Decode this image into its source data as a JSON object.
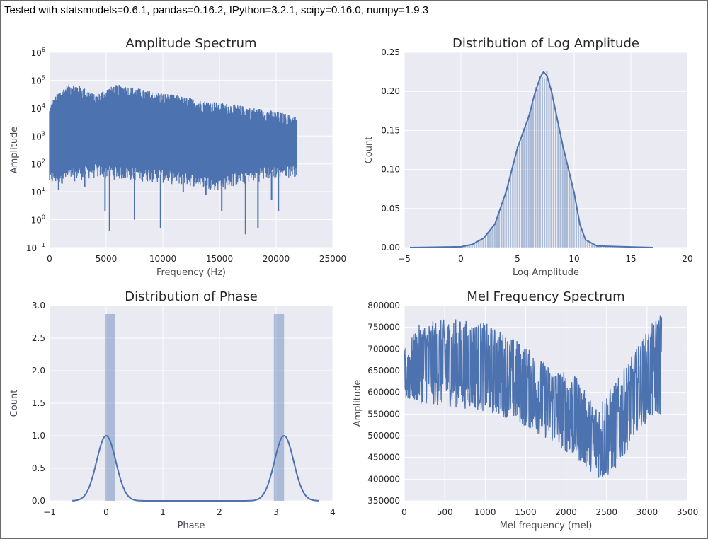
{
  "caption": "Tested with statsmodels=0.6.1, pandas=0.16.2, IPython=3.2.1, scipy=0.16.0, numpy=1.9.3",
  "colors": {
    "axes_bg": "#eaeaf2",
    "grid": "#ffffff",
    "series": "#4c72b0"
  },
  "chart_data": [
    {
      "id": "amplitude",
      "type": "line",
      "title": "Amplitude Spectrum",
      "xlabel": "Frequency (Hz)",
      "ylabel": "Amplitude",
      "xlim": [
        0,
        25000
      ],
      "ylim_log10": [
        -1,
        6
      ],
      "yscale": "log",
      "xticks": [
        "0",
        "5000",
        "10000",
        "15000",
        "20000",
        "25000"
      ],
      "yticks": [
        {
          "base": "10",
          "exp": "−1"
        },
        {
          "base": "10",
          "exp": "0"
        },
        {
          "base": "10",
          "exp": "1"
        },
        {
          "base": "10",
          "exp": "2"
        },
        {
          "base": "10",
          "exp": "3"
        },
        {
          "base": "10",
          "exp": "4"
        },
        {
          "base": "10",
          "exp": "5"
        },
        {
          "base": "10",
          "exp": "6"
        }
      ],
      "grid": true,
      "x_max_data": 21800,
      "upper_envelope": [
        [
          0,
          10000
        ],
        [
          2000,
          80000
        ],
        [
          4000,
          30000
        ],
        [
          6000,
          70000
        ],
        [
          9000,
          40000
        ],
        [
          13000,
          20000
        ],
        [
          17000,
          12000
        ],
        [
          21800,
          5000
        ]
      ],
      "lower_envelope": [
        [
          0,
          30
        ],
        [
          4000,
          60
        ],
        [
          10000,
          40
        ],
        [
          15000,
          20
        ],
        [
          21800,
          70
        ]
      ],
      "dips": [
        [
          800,
          12
        ],
        [
          3100,
          15
        ],
        [
          4900,
          2
        ],
        [
          5300,
          0.4
        ],
        [
          7500,
          1
        ],
        [
          9800,
          0.5
        ],
        [
          11800,
          10
        ],
        [
          13800,
          8
        ],
        [
          15200,
          2
        ],
        [
          17300,
          0.3
        ],
        [
          18400,
          0.5
        ],
        [
          19600,
          5
        ],
        [
          20200,
          2
        ]
      ]
    },
    {
      "id": "log-amplitude",
      "type": "histogram",
      "title": "Distribution of Log Amplitude",
      "xlabel": "Log Amplitude",
      "ylabel": "Count",
      "xlim": [
        -5,
        20
      ],
      "ylim": [
        0,
        0.25
      ],
      "xticks": [
        "−5",
        "0",
        "5",
        "10",
        "15",
        "20"
      ],
      "yticks": [
        "0.00",
        "0.05",
        "0.10",
        "0.15",
        "0.20",
        "0.25"
      ],
      "grid": true,
      "bin_width": 0.2,
      "range": [
        -4.5,
        17
      ],
      "kde": [
        [
          -4.5,
          0
        ],
        [
          0,
          0.001
        ],
        [
          1,
          0.004
        ],
        [
          2,
          0.012
        ],
        [
          3,
          0.03
        ],
        [
          4,
          0.072
        ],
        [
          5,
          0.128
        ],
        [
          6,
          0.168
        ],
        [
          6.5,
          0.196
        ],
        [
          7.0,
          0.218
        ],
        [
          7.3,
          0.225
        ],
        [
          7.6,
          0.22
        ],
        [
          8.0,
          0.2
        ],
        [
          8.5,
          0.165
        ],
        [
          9.0,
          0.13
        ],
        [
          9.5,
          0.1
        ],
        [
          10.0,
          0.07
        ],
        [
          10.5,
          0.03
        ],
        [
          11.0,
          0.01
        ],
        [
          12,
          0.002
        ],
        [
          17,
          0
        ]
      ]
    },
    {
      "id": "phase",
      "type": "histogram",
      "title": "Distribution of Phase",
      "xlabel": "Phase",
      "ylabel": "Count",
      "xlim": [
        -1,
        4
      ],
      "ylim": [
        0,
        3
      ],
      "xticks": [
        "−1",
        "0",
        "1",
        "2",
        "3",
        "4"
      ],
      "yticks": [
        "0.0",
        "0.5",
        "1.0",
        "1.5",
        "2.0",
        "2.5",
        "3.0"
      ],
      "grid": true,
      "bars": [
        {
          "x0": -0.02,
          "x1": 0.16,
          "height": 2.87
        },
        {
          "x0": 2.96,
          "x1": 3.14,
          "height": 2.87
        }
      ],
      "kde_peaks": [
        {
          "center": 0,
          "height": 1.0,
          "sd": 0.17
        },
        {
          "center": 3.14,
          "height": 1.0,
          "sd": 0.17
        }
      ],
      "kde_range": [
        -0.6,
        3.75
      ]
    },
    {
      "id": "mel",
      "type": "line",
      "title": "Mel Frequency Spectrum",
      "xlabel": "Mel frequency (mel)",
      "ylabel": "Amplitude",
      "xlim": [
        0,
        3500
      ],
      "ylim": [
        350000,
        800000
      ],
      "xticks": [
        "0",
        "500",
        "1000",
        "1500",
        "2000",
        "2500",
        "3000",
        "3500"
      ],
      "yticks": [
        "350000",
        "400000",
        "450000",
        "500000",
        "550000",
        "600000",
        "650000",
        "700000",
        "750000",
        "800000"
      ],
      "grid": true,
      "x_max_data": 3180,
      "upper_envelope": [
        [
          0,
          700000
        ],
        [
          200,
          760000
        ],
        [
          600,
          770000
        ],
        [
          1000,
          760000
        ],
        [
          1400,
          720000
        ],
        [
          1800,
          660000
        ],
        [
          2100,
          640000
        ],
        [
          2350,
          570000
        ],
        [
          2600,
          620000
        ],
        [
          2800,
          680000
        ],
        [
          3000,
          740000
        ],
        [
          3180,
          790000
        ]
      ],
      "lower_envelope": [
        [
          0,
          580000
        ],
        [
          400,
          570000
        ],
        [
          900,
          560000
        ],
        [
          1300,
          540000
        ],
        [
          1700,
          500000
        ],
        [
          2100,
          450000
        ],
        [
          2450,
          395000
        ],
        [
          2650,
          430000
        ],
        [
          2900,
          520000
        ],
        [
          3180,
          550000
        ]
      ]
    }
  ]
}
